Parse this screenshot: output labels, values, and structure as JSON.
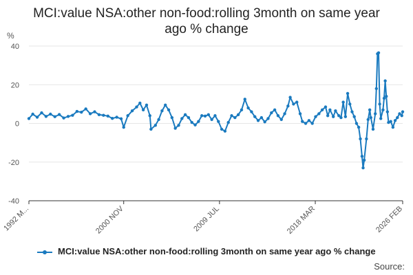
{
  "title_line1": "MCI:value NSA:other non-food:rolling 3month on same year",
  "title_line2": "ago % change",
  "source_label": "Source:",
  "colors": {
    "series": "#1a7abf",
    "grid": "#e6e6e6",
    "axis": "#333333",
    "text": "#555555"
  },
  "chart_data": {
    "type": "line",
    "title": "MCI:value NSA:other non-food:rolling 3month on same year ago % change",
    "ylabel": "%",
    "ylim": [
      -40,
      40
    ],
    "yticks": [
      -40,
      -20,
      0,
      20,
      40
    ],
    "x_start": 1992.25,
    "x_end": 2026.08,
    "xtick_labels": [
      {
        "label": "1992 M...",
        "x": 1992.25
      },
      {
        "label": "2000 NOV",
        "x": 2000.83
      },
      {
        "label": "2009 JUL",
        "x": 2009.5
      },
      {
        "label": "2018 MAR",
        "x": 2018.17
      },
      {
        "label": "2026 FEB",
        "x": 2026.08
      }
    ],
    "series": [
      {
        "name": "MCI:value NSA:other non-food:rolling 3month on same year ago % change",
        "points": [
          [
            1992.25,
            2.5
          ],
          [
            1992.6,
            4.8
          ],
          [
            1993.0,
            3.2
          ],
          [
            1993.4,
            5.5
          ],
          [
            1993.8,
            3.6
          ],
          [
            1994.2,
            4.8
          ],
          [
            1994.6,
            3.5
          ],
          [
            1995.0,
            4.6
          ],
          [
            1995.4,
            2.8
          ],
          [
            1995.8,
            3.6
          ],
          [
            1996.2,
            4.2
          ],
          [
            1996.6,
            6.2
          ],
          [
            1997.0,
            5.8
          ],
          [
            1997.4,
            7.5
          ],
          [
            1997.8,
            5.0
          ],
          [
            1998.2,
            6.0
          ],
          [
            1998.6,
            4.5
          ],
          [
            1999.0,
            4.2
          ],
          [
            1999.4,
            3.8
          ],
          [
            1999.8,
            2.6
          ],
          [
            2000.2,
            3.2
          ],
          [
            2000.6,
            2.4
          ],
          [
            2000.83,
            -2.0
          ],
          [
            2001.2,
            4.0
          ],
          [
            2001.6,
            6.5
          ],
          [
            2002.0,
            8.5
          ],
          [
            2002.3,
            10.5
          ],
          [
            2002.6,
            7.0
          ],
          [
            2002.9,
            9.5
          ],
          [
            2003.2,
            4.0
          ],
          [
            2003.3,
            -3.0
          ],
          [
            2003.7,
            -1.0
          ],
          [
            2004.0,
            2.0
          ],
          [
            2004.3,
            6.5
          ],
          [
            2004.6,
            9.5
          ],
          [
            2004.9,
            7.0
          ],
          [
            2005.2,
            3.0
          ],
          [
            2005.5,
            -2.5
          ],
          [
            2005.8,
            -1.0
          ],
          [
            2006.1,
            2.5
          ],
          [
            2006.4,
            4.5
          ],
          [
            2006.7,
            3.0
          ],
          [
            2007.0,
            0.5
          ],
          [
            2007.3,
            -0.8
          ],
          [
            2007.6,
            1.0
          ],
          [
            2007.9,
            4.0
          ],
          [
            2008.2,
            3.8
          ],
          [
            2008.5,
            4.5
          ],
          [
            2008.8,
            2.0
          ],
          [
            2009.1,
            4.0
          ],
          [
            2009.4,
            1.0
          ],
          [
            2009.7,
            -3.0
          ],
          [
            2010.0,
            -4.0
          ],
          [
            2010.3,
            0.5
          ],
          [
            2010.6,
            4.0
          ],
          [
            2010.9,
            3.0
          ],
          [
            2011.2,
            4.5
          ],
          [
            2011.5,
            7.0
          ],
          [
            2011.8,
            12.5
          ],
          [
            2012.1,
            8.0
          ],
          [
            2012.4,
            6.0
          ],
          [
            2012.7,
            3.5
          ],
          [
            2013.0,
            1.5
          ],
          [
            2013.3,
            3.0
          ],
          [
            2013.6,
            0.8
          ],
          [
            2013.9,
            2.5
          ],
          [
            2014.2,
            5.5
          ],
          [
            2014.5,
            7.0
          ],
          [
            2014.8,
            4.0
          ],
          [
            2015.1,
            2.0
          ],
          [
            2015.4,
            5.0
          ],
          [
            2015.7,
            9.0
          ],
          [
            2015.9,
            13.5
          ],
          [
            2016.2,
            10.0
          ],
          [
            2016.5,
            11.0
          ],
          [
            2016.8,
            5.0
          ],
          [
            2017.0,
            1.0
          ],
          [
            2017.3,
            0.0
          ],
          [
            2017.6,
            1.5
          ],
          [
            2017.9,
            0.0
          ],
          [
            2018.2,
            3.5
          ],
          [
            2018.5,
            5.0
          ],
          [
            2018.8,
            7.0
          ],
          [
            2019.1,
            8.5
          ],
          [
            2019.3,
            4.0
          ],
          [
            2019.5,
            7.0
          ],
          [
            2019.8,
            3.5
          ],
          [
            2020.0,
            6.5
          ],
          [
            2020.3,
            4.0
          ],
          [
            2020.5,
            3.0
          ],
          [
            2020.7,
            11.0
          ],
          [
            2020.9,
            3.5
          ],
          [
            2021.1,
            15.5
          ],
          [
            2021.3,
            10.0
          ],
          [
            2021.5,
            6.0
          ],
          [
            2021.7,
            3.5
          ],
          [
            2021.9,
            0.0
          ],
          [
            2022.1,
            -2.0
          ],
          [
            2022.25,
            -8.0
          ],
          [
            2022.4,
            -17.0
          ],
          [
            2022.5,
            -23.0
          ],
          [
            2022.6,
            -19.0
          ],
          [
            2022.8,
            -8.0
          ],
          [
            2022.95,
            2.0
          ],
          [
            2023.1,
            7.0
          ],
          [
            2023.2,
            3.0
          ],
          [
            2023.4,
            -3.0
          ],
          [
            2023.6,
            5.0
          ],
          [
            2023.7,
            18.0
          ],
          [
            2023.8,
            36.0
          ],
          [
            2023.9,
            36.5
          ],
          [
            2024.0,
            10.0
          ],
          [
            2024.1,
            2.5
          ],
          [
            2024.3,
            7.0
          ],
          [
            2024.4,
            13.0
          ],
          [
            2024.5,
            22.0
          ],
          [
            2024.6,
            14.0
          ],
          [
            2024.7,
            6.0
          ],
          [
            2024.8,
            0.5
          ],
          [
            2025.0,
            1.0
          ],
          [
            2025.2,
            -2.0
          ],
          [
            2025.4,
            1.5
          ],
          [
            2025.6,
            3.0
          ],
          [
            2025.8,
            5.0
          ],
          [
            2026.0,
            4.0
          ],
          [
            2026.08,
            6.0
          ]
        ]
      }
    ]
  }
}
